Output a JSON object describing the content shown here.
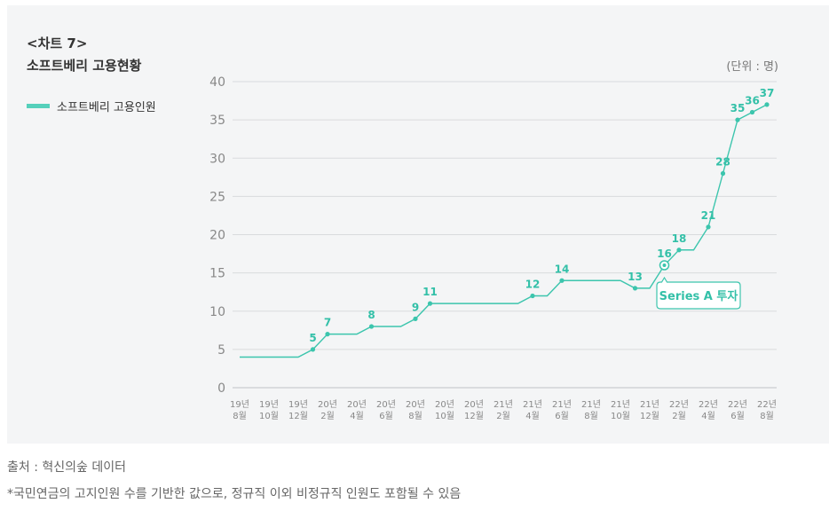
{
  "chart_label": "<차트 7>",
  "unit": "(단위 : 명)",
  "source": "출처 : 혁신의숲 데이터",
  "footnote": "*국민연금의 고지인원 수를 기반한 값으로, 정규직 이외 비정규직 인원도 포함될 수 있음",
  "colors": {
    "line": "#3cc5ad",
    "marker": "#3cc5ad",
    "label": "#33c0a8",
    "legend": "#55d0bb",
    "grid": "#d9dbdd"
  },
  "chart_data": {
    "type": "line",
    "title": "소프트베리 고용현황",
    "legend_position": "left",
    "grid": true,
    "ylim": [
      0,
      40
    ],
    "yticks": [
      "0",
      "5",
      "10",
      "15",
      "20",
      "25",
      "30",
      "35",
      "40"
    ],
    "categories": [
      [
        "19년",
        "8월"
      ],
      [
        "19년",
        "10월"
      ],
      [
        "19년",
        "12월"
      ],
      [
        "20년",
        "2월"
      ],
      [
        "20년",
        "4월"
      ],
      [
        "20년",
        "6월"
      ],
      [
        "20년",
        "8월"
      ],
      [
        "20년",
        "10월"
      ],
      [
        "20년",
        "12월"
      ],
      [
        "21년",
        "2월"
      ],
      [
        "21년",
        "4월"
      ],
      [
        "21년",
        "6월"
      ],
      [
        "21년",
        "8월"
      ],
      [
        "21년",
        "10월"
      ],
      [
        "21년",
        "12월"
      ],
      [
        "22년",
        "2월"
      ],
      [
        "22년",
        "4월"
      ],
      [
        "22년",
        "6월"
      ],
      [
        "22년",
        "8월"
      ]
    ],
    "series": [
      {
        "name": "소프트베리 고용인원",
        "points": [
          {
            "x": 0,
            "y": 4,
            "label": ""
          },
          {
            "x": 2,
            "y": 4,
            "label": ""
          },
          {
            "x": 2.5,
            "y": 5,
            "label": "5"
          },
          {
            "x": 3,
            "y": 7,
            "label": "7"
          },
          {
            "x": 4,
            "y": 7,
            "label": ""
          },
          {
            "x": 4.5,
            "y": 8,
            "label": "8"
          },
          {
            "x": 5.5,
            "y": 8,
            "label": ""
          },
          {
            "x": 6,
            "y": 9,
            "label": "9"
          },
          {
            "x": 6.5,
            "y": 11,
            "label": "11"
          },
          {
            "x": 9.5,
            "y": 11,
            "label": ""
          },
          {
            "x": 10,
            "y": 12,
            "label": "12"
          },
          {
            "x": 10.5,
            "y": 12,
            "label": ""
          },
          {
            "x": 11,
            "y": 14,
            "label": "14"
          },
          {
            "x": 13,
            "y": 14,
            "label": ""
          },
          {
            "x": 13.5,
            "y": 13,
            "label": "13"
          },
          {
            "x": 14,
            "y": 13,
            "label": ""
          },
          {
            "x": 14.5,
            "y": 16,
            "label": "16"
          },
          {
            "x": 15,
            "y": 18,
            "label": "18"
          },
          {
            "x": 15.5,
            "y": 18,
            "label": ""
          },
          {
            "x": 16,
            "y": 21,
            "label": "21"
          },
          {
            "x": 16.5,
            "y": 28,
            "label": "28"
          },
          {
            "x": 17,
            "y": 35,
            "label": "35"
          },
          {
            "x": 17.5,
            "y": 36,
            "label": "36"
          },
          {
            "x": 18,
            "y": 37,
            "label": "37"
          }
        ]
      }
    ],
    "annotations": [
      {
        "text": "Series A 투자",
        "x": 14.5,
        "y": 16
      }
    ]
  }
}
